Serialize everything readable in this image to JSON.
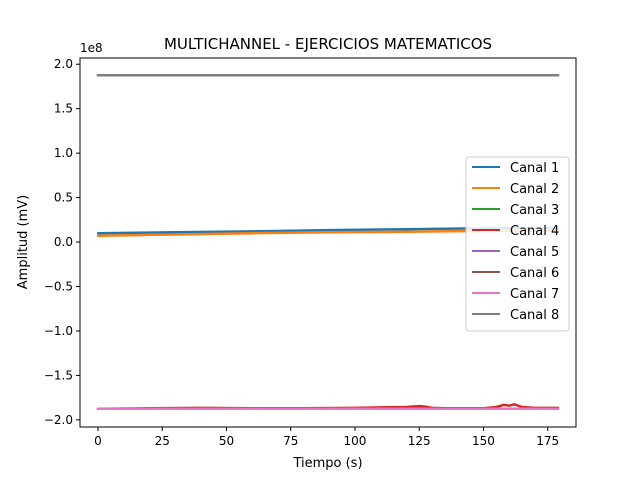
{
  "chart_data": {
    "type": "line",
    "title": "MULTICHANNEL - EJERCICIOS MATEMATICOS",
    "xlabel": "Tiempo (s)",
    "ylabel": "Amplitud (mV)",
    "y_offset_label": "1e8",
    "xlim": [
      -7,
      186
    ],
    "ylim": [
      -2.08,
      2.07
    ],
    "y_unit_scale": 100000000,
    "xticks": [
      0,
      25,
      50,
      75,
      100,
      125,
      150,
      175
    ],
    "xtick_labels": [
      "0",
      "25",
      "50",
      "75",
      "100",
      "125",
      "150",
      "175"
    ],
    "yticks": [
      2.0,
      1.5,
      1.0,
      0.5,
      0.0,
      -0.5,
      -1.0,
      -1.5,
      -2.0
    ],
    "ytick_labels": [
      "2.0",
      "1.5",
      "1.0",
      "0.5",
      "0.0",
      "−0.5",
      "−1.0",
      "−1.5",
      "−2.0"
    ],
    "grid": false,
    "legend_position": "center-right",
    "series": [
      {
        "name": "Canal 1",
        "color": "#1f77b4",
        "x": [
          0,
          30,
          60,
          90,
          120,
          150,
          179
        ],
        "y": [
          0.1,
          0.11,
          0.12,
          0.135,
          0.145,
          0.155,
          0.16
        ]
      },
      {
        "name": "Canal 2",
        "color": "#ff7f0e",
        "x": [
          0,
          30,
          60,
          90,
          120,
          150,
          179
        ],
        "y": [
          0.07,
          0.085,
          0.1,
          0.11,
          0.115,
          0.125,
          0.13
        ]
      },
      {
        "name": "Canal 3",
        "color": "#2ca02c",
        "x": [
          0,
          179
        ],
        "y": [
          1.875,
          1.875
        ]
      },
      {
        "name": "Canal 4",
        "color": "#d62728",
        "x": [
          0,
          20,
          40,
          60,
          80,
          100,
          110,
          120,
          125,
          127,
          130,
          135,
          150,
          155,
          158,
          160,
          162,
          165,
          170,
          179
        ],
        "y": [
          -1.875,
          -1.87,
          -1.865,
          -1.87,
          -1.87,
          -1.865,
          -1.86,
          -1.855,
          -1.845,
          -1.85,
          -1.865,
          -1.87,
          -1.87,
          -1.855,
          -1.83,
          -1.84,
          -1.825,
          -1.855,
          -1.865,
          -1.865
        ]
      },
      {
        "name": "Canal 5",
        "color": "#9467bd",
        "x": [
          0,
          179
        ],
        "y": [
          -1.875,
          -1.875
        ]
      },
      {
        "name": "Canal 6",
        "color": "#8c564b",
        "x": [
          0,
          179
        ],
        "y": [
          1.875,
          1.875
        ]
      },
      {
        "name": "Canal 7",
        "color": "#e377c2",
        "x": [
          0,
          179
        ],
        "y": [
          -1.875,
          -1.875
        ]
      },
      {
        "name": "Canal 8",
        "color": "#7f7f7f",
        "x": [
          0,
          179
        ],
        "y": [
          1.875,
          1.875
        ]
      }
    ]
  }
}
